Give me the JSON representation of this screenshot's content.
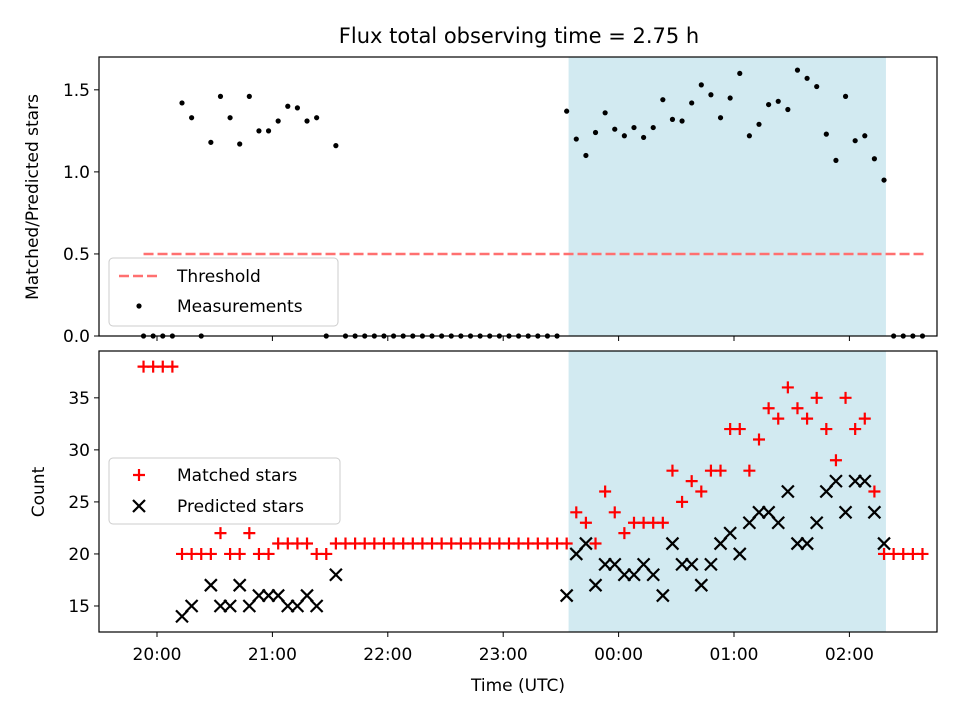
{
  "title": "Flux total observing time = 2.75 h",
  "colors": {
    "band": "#add8e6",
    "threshold": "#ff7070",
    "measurement": "#000000",
    "matched": "#ff0000",
    "predicted": "#000000"
  },
  "chart_data": [
    {
      "type": "scatter",
      "panel": "top",
      "ylabel": "Matched/Predicted stars",
      "ylim": [
        0,
        1.7
      ],
      "yticks": [
        "0.0",
        "0.5",
        "1.0",
        "1.5"
      ],
      "shaded_interval": [
        "23:34",
        "02:19"
      ],
      "legend": {
        "placement": "lower-left",
        "entries": [
          "Threshold",
          "Measurements"
        ]
      },
      "threshold": {
        "name": "Threshold",
        "value": 0.5,
        "x_range": [
          "19:53",
          "02:40"
        ],
        "style": "dashed"
      },
      "series": [
        {
          "name": "Measurements",
          "x": [
            "19:53",
            "19:58",
            "20:03",
            "20:08",
            "20:13",
            "20:18",
            "20:23",
            "20:28",
            "20:33",
            "20:38",
            "20:43",
            "20:48",
            "20:53",
            "20:58",
            "21:03",
            "21:08",
            "21:13",
            "21:18",
            "21:23",
            "21:28",
            "21:33",
            "21:38",
            "21:43",
            "21:48",
            "21:53",
            "21:58",
            "22:03",
            "22:08",
            "22:13",
            "22:18",
            "22:23",
            "22:28",
            "22:33",
            "22:38",
            "22:43",
            "22:48",
            "22:53",
            "22:58",
            "23:03",
            "23:08",
            "23:13",
            "23:18",
            "23:23",
            "23:28",
            "23:33",
            "23:38",
            "23:43",
            "23:48",
            "23:53",
            "23:58",
            "00:03",
            "00:08",
            "00:13",
            "00:18",
            "00:23",
            "00:28",
            "00:33",
            "00:38",
            "00:43",
            "00:48",
            "00:53",
            "00:58",
            "01:03",
            "01:08",
            "01:13",
            "01:18",
            "01:23",
            "01:28",
            "01:33",
            "01:38",
            "01:43",
            "01:48",
            "01:53",
            "01:58",
            "02:03",
            "02:08",
            "02:13",
            "02:18",
            "02:23",
            "02:28",
            "02:33",
            "02:38"
          ],
          "y": [
            0,
            0,
            0,
            0,
            1.42,
            1.33,
            0,
            1.18,
            1.46,
            1.33,
            1.17,
            1.46,
            1.25,
            1.25,
            1.31,
            1.4,
            1.39,
            1.31,
            1.33,
            0,
            1.16,
            0,
            0,
            0,
            0,
            0,
            0,
            0,
            0,
            0,
            0,
            0,
            0,
            0,
            0,
            0,
            0,
            0,
            0,
            0,
            0,
            0,
            0,
            0,
            1.37,
            1.2,
            1.1,
            1.24,
            1.36,
            1.26,
            1.22,
            1.27,
            1.21,
            1.27,
            1.44,
            1.32,
            1.31,
            1.42,
            1.53,
            1.47,
            1.33,
            1.45,
            1.6,
            1.22,
            1.29,
            1.41,
            1.43,
            1.38,
            1.62,
            1.57,
            1.52,
            1.23,
            1.07,
            1.46,
            1.19,
            1.22,
            1.08,
            0.95,
            0,
            0,
            0,
            0
          ]
        }
      ]
    },
    {
      "type": "scatter",
      "panel": "bottom",
      "xlabel": "Time (UTC)",
      "ylabel": "Count",
      "ylim": [
        12.5,
        39.5
      ],
      "yticks": [
        "15",
        "20",
        "25",
        "30",
        "35"
      ],
      "xticks": [
        "20:00",
        "21:00",
        "22:00",
        "23:00",
        "00:00",
        "01:00",
        "02:00"
      ],
      "shaded_interval": [
        "23:34",
        "02:19"
      ],
      "legend": {
        "placement": "center-left",
        "entries": [
          "Matched stars",
          "Predicted stars"
        ]
      },
      "series": [
        {
          "name": "Matched stars",
          "marker": "plus",
          "x": [
            "19:53",
            "19:58",
            "20:03",
            "20:08",
            "20:13",
            "20:18",
            "20:23",
            "20:28",
            "20:33",
            "20:38",
            "20:43",
            "20:48",
            "20:53",
            "20:58",
            "21:03",
            "21:08",
            "21:13",
            "21:18",
            "21:23",
            "21:28",
            "21:33",
            "21:38",
            "21:43",
            "21:48",
            "21:53",
            "21:58",
            "22:03",
            "22:08",
            "22:13",
            "22:18",
            "22:23",
            "22:28",
            "22:33",
            "22:38",
            "22:43",
            "22:48",
            "22:53",
            "22:58",
            "23:03",
            "23:08",
            "23:13",
            "23:18",
            "23:23",
            "23:28",
            "23:33",
            "23:38",
            "23:43",
            "23:48",
            "23:53",
            "23:58",
            "00:03",
            "00:08",
            "00:13",
            "00:18",
            "00:23",
            "00:28",
            "00:33",
            "00:38",
            "00:43",
            "00:48",
            "00:53",
            "00:58",
            "01:03",
            "01:08",
            "01:13",
            "01:18",
            "01:23",
            "01:28",
            "01:33",
            "01:38",
            "01:43",
            "01:48",
            "01:53",
            "01:58",
            "02:03",
            "02:08",
            "02:13",
            "02:18",
            "02:23",
            "02:28",
            "02:33",
            "02:38"
          ],
          "y": [
            38,
            38,
            38,
            38,
            20,
            20,
            20,
            20,
            22,
            20,
            20,
            22,
            20,
            20,
            21,
            21,
            21,
            21,
            20,
            20,
            21,
            21,
            21,
            21,
            21,
            21,
            21,
            21,
            21,
            21,
            21,
            21,
            21,
            21,
            21,
            21,
            21,
            21,
            21,
            21,
            21,
            21,
            21,
            21,
            21,
            24,
            23,
            21,
            26,
            24,
            22,
            23,
            23,
            23,
            23,
            28,
            25,
            27,
            26,
            28,
            28,
            32,
            32,
            28,
            31,
            34,
            33,
            36,
            34,
            33,
            35,
            32,
            29,
            35,
            32,
            33,
            26,
            20,
            20,
            20,
            20,
            20
          ]
        },
        {
          "name": "Predicted stars",
          "marker": "x",
          "x": [
            "20:13",
            "20:18",
            "20:28",
            "20:33",
            "20:38",
            "20:43",
            "20:48",
            "20:53",
            "20:58",
            "21:03",
            "21:08",
            "21:13",
            "21:18",
            "21:23",
            "21:33",
            "23:33",
            "23:38",
            "23:43",
            "23:48",
            "23:53",
            "23:58",
            "00:03",
            "00:08",
            "00:13",
            "00:18",
            "00:23",
            "00:28",
            "00:33",
            "00:38",
            "00:43",
            "00:48",
            "00:53",
            "00:58",
            "01:03",
            "01:08",
            "01:13",
            "01:18",
            "01:23",
            "01:28",
            "01:33",
            "01:38",
            "01:43",
            "01:48",
            "01:53",
            "01:58",
            "02:03",
            "02:08",
            "02:13",
            "02:18"
          ],
          "y": [
            14,
            15,
            17,
            15,
            15,
            17,
            15,
            16,
            16,
            16,
            15,
            15,
            16,
            15,
            18,
            16,
            20,
            21,
            17,
            19,
            19,
            18,
            18,
            19,
            18,
            16,
            21,
            19,
            19,
            17,
            19,
            21,
            22,
            20,
            23,
            24,
            24,
            23,
            26,
            21,
            21,
            23,
            26,
            27,
            24,
            27,
            27,
            24,
            21
          ]
        }
      ]
    }
  ]
}
